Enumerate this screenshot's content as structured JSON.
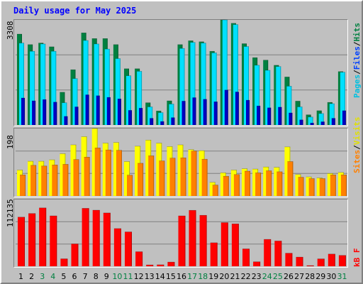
{
  "page": {
    "title": "Daily usage for May 2025"
  },
  "colors": {
    "background": "#c0c0c0",
    "title": "#0000ff",
    "pages": "#00e0ff",
    "pages_dark": "#0000c0",
    "files": "#0040ff",
    "hits": "#008040",
    "visits": "#ffff00",
    "sites": "#ff8000",
    "kbytes": "#ff0000",
    "weekend_label": "#008040",
    "weekday_label": "#000000"
  },
  "legend": {
    "hits_panel": [
      {
        "text": "Pages",
        "color": "#00c0e0"
      },
      {
        "text": "/",
        "color": "#000000"
      },
      {
        "text": "Files",
        "color": "#0040ff"
      },
      {
        "text": "/",
        "color": "#000000"
      },
      {
        "text": "Hits",
        "color": "#008040"
      }
    ],
    "visits_panel": [
      {
        "text": "Sites",
        "color": "#ff8000"
      },
      {
        "text": "/",
        "color": "#000000"
      },
      {
        "text": "Visits",
        "color": "#e0e000"
      }
    ],
    "kbytes_panel": [
      {
        "text": "kB F",
        "color": "#ff0000"
      }
    ]
  },
  "chart_data": {
    "type": "bar",
    "title": "Daily usage for May 2025",
    "categories": [
      "1",
      "2",
      "3",
      "4",
      "5",
      "6",
      "7",
      "8",
      "9",
      "10",
      "11",
      "12",
      "13",
      "14",
      "15",
      "16",
      "17",
      "18",
      "19",
      "20",
      "21",
      "22",
      "23",
      "24",
      "25",
      "26",
      "27",
      "28",
      "29",
      "30",
      "31"
    ],
    "weekend_days": [
      "3",
      "4",
      "10",
      "11",
      "17",
      "18",
      "24",
      "25",
      "31"
    ],
    "panels": [
      {
        "name": "hits",
        "ymax_label": "3308",
        "ylim": [
          0,
          3308
        ],
        "gridlines": [
          1103,
          2205
        ],
        "series": [
          {
            "name": "Hits",
            "values": [
              2860,
              2530,
              2580,
              2460,
              1030,
              1740,
              2900,
              2720,
              2720,
              2530,
              1770,
              1770,
              700,
              440,
              760,
              2530,
              2650,
              2620,
              2320,
              3308,
              3200,
              2560,
              2120,
              2040,
              1880,
              1510,
              750,
              320,
              450,
              710,
              1680
            ]
          },
          {
            "name": "Files",
            "values": [
              2580,
              2320,
              2550,
              2320,
              700,
              1460,
              2660,
              2550,
              2390,
              2090,
              1550,
              1690,
              570,
              390,
              660,
              2410,
              2600,
              2580,
              2270,
              3308,
              3160,
              2470,
              1880,
              1720,
              1840,
              1220,
              570,
              250,
              360,
              670,
              1660
            ]
          },
          {
            "name": "Pages",
            "values": [
              850,
              760,
              800,
              720,
              270,
              570,
              950,
              920,
              870,
              820,
              460,
              530,
              210,
              110,
              230,
              750,
              860,
              810,
              730,
              1100,
              1040,
              780,
              600,
              540,
              560,
              380,
              160,
              60,
              100,
              210,
              450
            ]
          }
        ]
      },
      {
        "name": "visits",
        "ymax_label": "198",
        "ylim": [
          0,
          198
        ],
        "gridlines": [
          66,
          132
        ],
        "series": [
          {
            "name": "Visits",
            "values": [
              76,
              102,
              102,
              106,
              124,
              150,
              174,
              198,
              155,
              157,
              101,
              146,
              164,
              155,
              145,
              150,
              136,
              133,
              40,
              68,
              76,
              80,
              79,
              85,
              84,
              144,
              63,
              56,
              53,
              66,
              69
            ]
          },
          {
            "name": "Sites",
            "values": [
              62,
              90,
              88,
              91,
              93,
              107,
              114,
              141,
              135,
              134,
              61,
              96,
              118,
              103,
              111,
              112,
              132,
              108,
              32,
              58,
              63,
              73,
              68,
              74,
              71,
              101,
              55,
              51,
              51,
              62,
              62
            ]
          }
        ]
      },
      {
        "name": "kbytes",
        "ymax_label": "112135",
        "ylim": [
          0,
          112135
        ],
        "gridlines": [
          37378,
          74757
        ],
        "series": [
          {
            "name": "kB F",
            "values": [
              82500,
              88600,
              98000,
              84700,
              12500,
              37600,
              97400,
              94300,
              89600,
              63400,
              57700,
              24400,
              2300,
              2500,
              7000,
              84700,
              94000,
              85700,
              39500,
              73400,
              71200,
              29200,
              7500,
              45200,
              42500,
              22000,
              15400,
              1200,
              12400,
              20500,
              18300
            ]
          }
        ]
      }
    ]
  }
}
